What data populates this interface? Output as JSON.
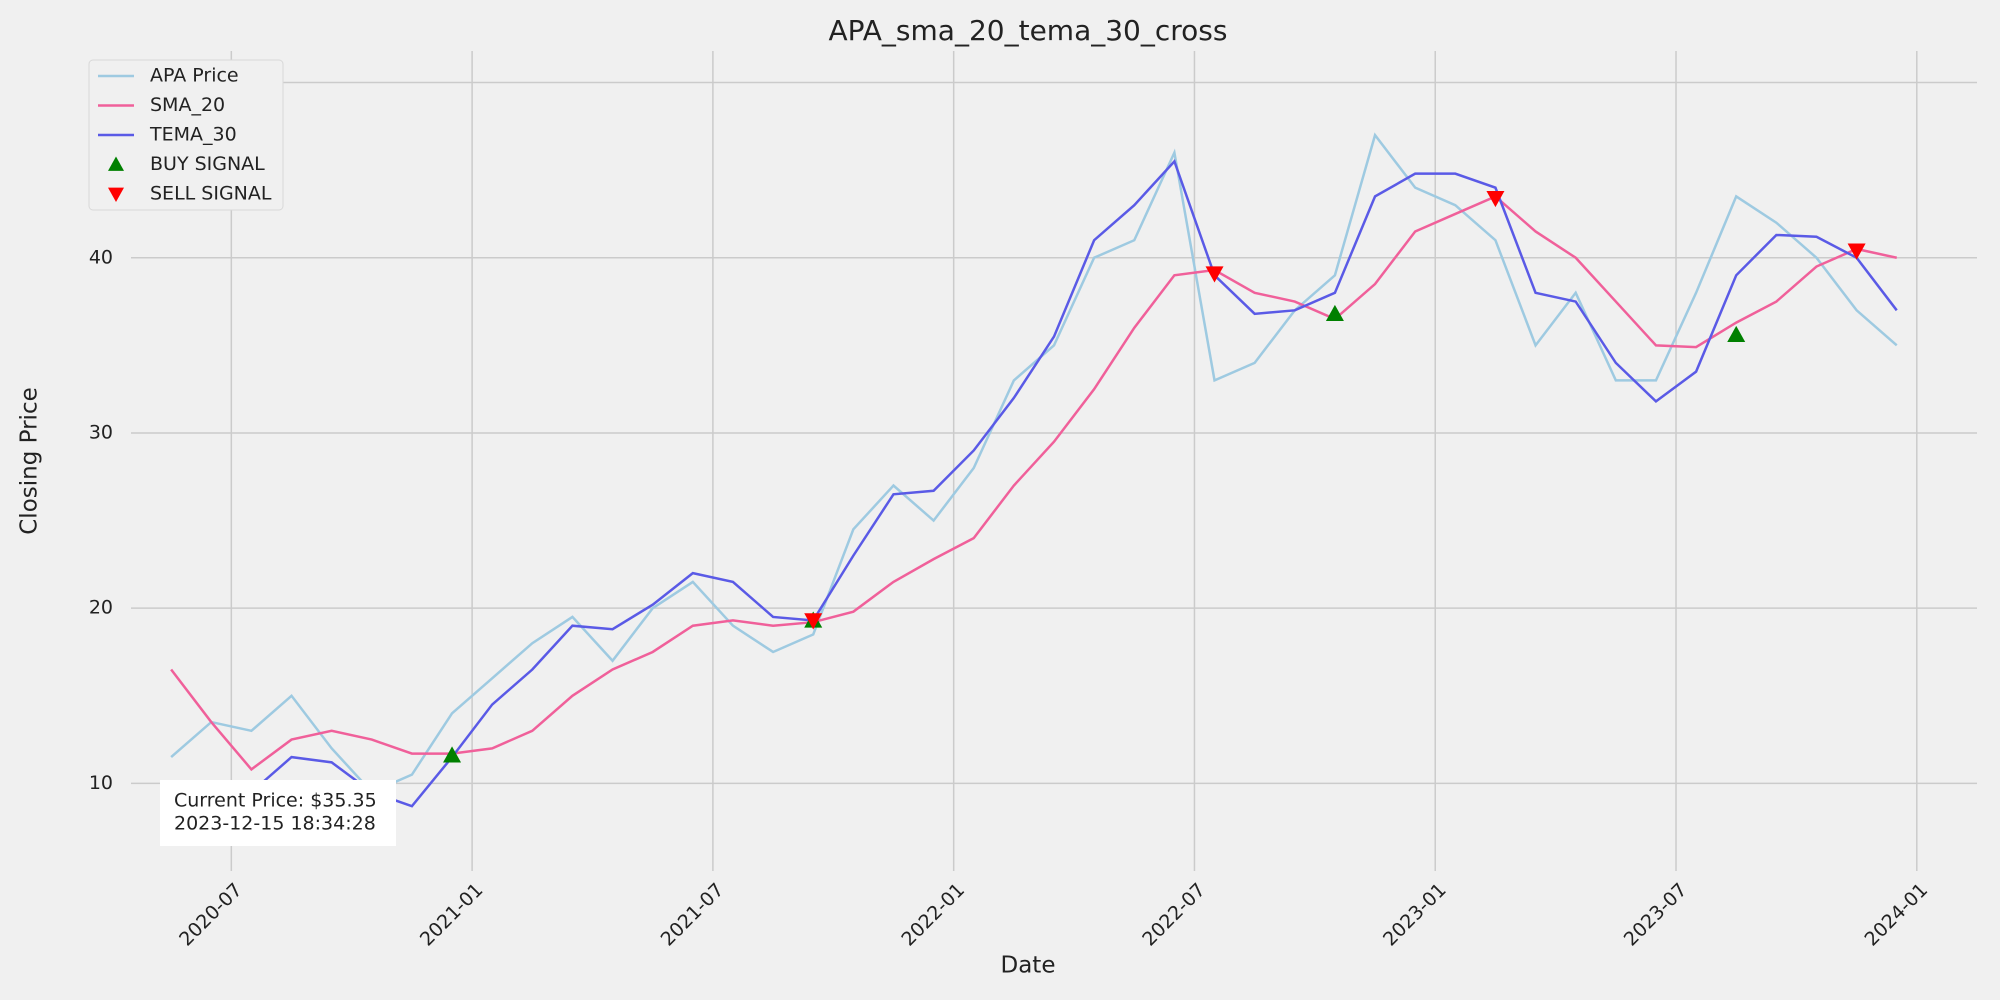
{
  "chart_data": {
    "type": "line",
    "title": "APA_sma_20_tema_30_cross",
    "xlabel": "Date",
    "ylabel": "Closing Price",
    "x": [
      "2020-05",
      "2020-06",
      "2020-07",
      "2020-08",
      "2020-09",
      "2020-10",
      "2020-11",
      "2020-12",
      "2021-01",
      "2021-02",
      "2021-03",
      "2021-04",
      "2021-05",
      "2021-06",
      "2021-07",
      "2021-08",
      "2021-09",
      "2021-10",
      "2021-11",
      "2021-12",
      "2022-01",
      "2022-02",
      "2022-03",
      "2022-04",
      "2022-05",
      "2022-06",
      "2022-07",
      "2022-08",
      "2022-09",
      "2022-10",
      "2022-11",
      "2022-12",
      "2023-01",
      "2023-02",
      "2023-03",
      "2023-04",
      "2023-05",
      "2023-06",
      "2023-07",
      "2023-08",
      "2023-09",
      "2023-10",
      "2023-11",
      "2023-12"
    ],
    "series": [
      {
        "name": "APA Price",
        "color": "#9ecae1",
        "values": [
          11.5,
          13.5,
          13,
          15,
          12,
          9.5,
          10.5,
          14,
          16,
          18,
          19.5,
          17,
          20,
          21.5,
          19,
          17.5,
          18.5,
          24.5,
          27,
          25,
          28,
          33,
          35,
          40,
          41,
          46,
          33,
          34,
          37,
          39,
          47,
          44,
          43,
          41,
          35,
          38,
          33,
          33,
          38,
          43.5,
          42,
          40,
          37,
          35
        ]
      },
      {
        "name": "SMA_20",
        "color": "#f0609a",
        "values": [
          16.5,
          13.5,
          10.8,
          12.5,
          13,
          12.5,
          11.7,
          11.7,
          12,
          13,
          15,
          16.5,
          17.5,
          19,
          19.3,
          19,
          19.2,
          19.8,
          21.5,
          22.8,
          24,
          27,
          29.5,
          32.5,
          36,
          39,
          39.3,
          38,
          37.5,
          36.5,
          38.5,
          41.5,
          42.5,
          43.5,
          41.5,
          40,
          37.5,
          35,
          34.9,
          36.3,
          37.5,
          39.5,
          40.5,
          40
        ]
      },
      {
        "name": "TEMA_30",
        "color": "#5a5ae6",
        "values": [
          7,
          8,
          9.5,
          11.5,
          11.2,
          9.5,
          8.7,
          11.5,
          14.5,
          16.5,
          19,
          18.8,
          20.2,
          22,
          21.5,
          19.5,
          19.3,
          23,
          26.5,
          26.7,
          29,
          32,
          35.5,
          41,
          43,
          45.5,
          39,
          36.8,
          37,
          38,
          43.5,
          44.8,
          44.8,
          44,
          38,
          37.5,
          34,
          31.8,
          33.5,
          39,
          41.3,
          41.2,
          40,
          37
        ]
      },
      {
        "name": "BUY SIGNAL",
        "color": "#008000",
        "marker": "triangle-up",
        "x": [
          "2020-12",
          "2021-09",
          "2022-10",
          "2023-08"
        ],
        "values": [
          11.6,
          19.3,
          36.8,
          35.6
        ]
      },
      {
        "name": "SELL SIGNAL",
        "color": "#ff0000",
        "marker": "triangle-down",
        "x": [
          "2021-09",
          "2022-07",
          "2023-02",
          "2023-11"
        ],
        "values": [
          19.3,
          39.1,
          43.4,
          40.4
        ]
      }
    ],
    "xlim": [
      "2020-04",
      "2024-02"
    ],
    "xticks": [
      "2020-07",
      "2021-01",
      "2021-07",
      "2022-01",
      "2022-07",
      "2023-01",
      "2023-07",
      "2024-01"
    ],
    "ylim": [
      5,
      51.8
    ],
    "yticks": [
      10,
      20,
      30,
      40,
      50
    ],
    "grid": true,
    "legend": "upper left",
    "annotation": [
      "Current Price: $35.35",
      "2023-12-15 18:34:28"
    ]
  }
}
